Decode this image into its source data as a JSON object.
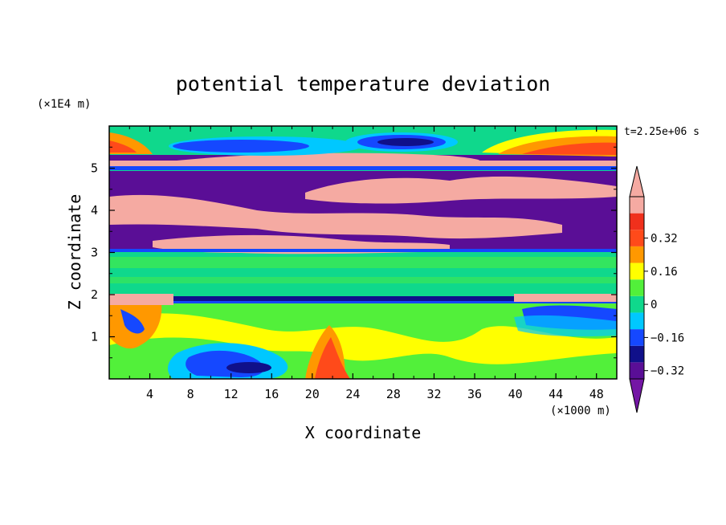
{
  "chart_data": {
    "type": "heatmap",
    "title": "potential temperature deviation",
    "time_label": "t=2.25e+06 s",
    "xlabel": "X coordinate",
    "ylabel": "Z coordinate",
    "x_unit": "(×1000 m)",
    "y_unit": "(×1E4 m)",
    "xlim": [
      0,
      50
    ],
    "ylim": [
      0,
      6
    ],
    "x_ticks": [
      "4",
      "8",
      "12",
      "16",
      "20",
      "24",
      "28",
      "32",
      "36",
      "40",
      "44",
      "48"
    ],
    "x_tick_values": [
      4,
      8,
      12,
      16,
      20,
      24,
      28,
      32,
      36,
      40,
      44,
      48
    ],
    "y_ticks": [
      "1",
      "2",
      "3",
      "4",
      "5"
    ],
    "y_tick_values": [
      1,
      2,
      3,
      4,
      5
    ],
    "colorbar": {
      "levels": [
        -0.4,
        -0.32,
        -0.24,
        -0.16,
        -0.08,
        0,
        0.08,
        0.16,
        0.24,
        0.32,
        0.4
      ],
      "labels": [
        "0.32",
        "0.16",
        "0",
        "−0.16",
        "−0.32"
      ],
      "label_values": [
        0.32,
        0.16,
        0,
        -0.16,
        -0.32
      ],
      "colors": [
        "#5a0e96",
        "#10108a",
        "#1548ff",
        "#00c8ff",
        "#0fd88c",
        "#52f03a",
        "#ffff00",
        "#ff9800",
        "#ff4a1a",
        "#f0301c",
        "#f5aaa2"
      ],
      "extend_low_color": "#7416a5",
      "extend_high_color": "#f5aaa2"
    },
    "grid": false,
    "bands": [
      {
        "z": [
          0.0,
          1.9
        ],
        "description_value": "mixed -0.24 to 0.24"
      },
      {
        "z": [
          1.9,
          2.0
        ],
        "value": -0.32
      },
      {
        "z": [
          2.0,
          3.0
        ],
        "value": 0.0
      },
      {
        "z": [
          3.0,
          4.8
        ],
        "value": "alternating -0.4 / 0.4"
      },
      {
        "z": [
          4.8,
          5.1
        ],
        "value": -0.4
      },
      {
        "z": [
          5.1,
          5.3
        ],
        "value": 0.4
      },
      {
        "z": [
          5.3,
          6.0
        ],
        "value": 0.0
      }
    ]
  }
}
